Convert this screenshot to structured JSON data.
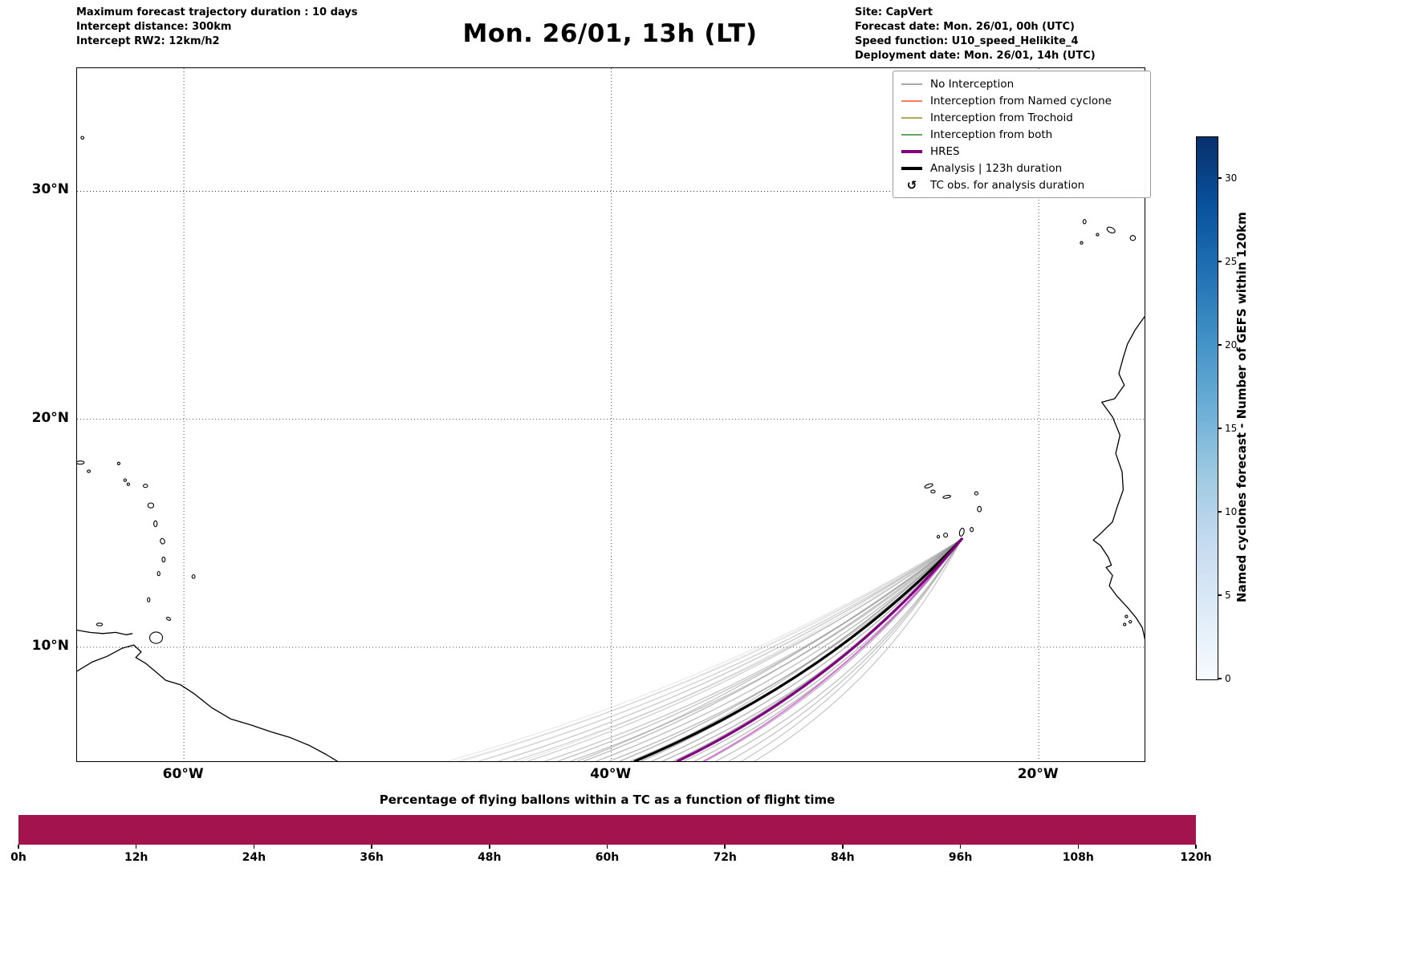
{
  "header": {
    "left_lines": [
      "Maximum forecast trajectory duration : 10 days",
      "Intercept distance: 300km",
      "Intercept RW2: 12km/h2"
    ],
    "title": "Mon. 26/01, 13h (LT)",
    "right_lines": [
      "Site: CapVert",
      "Forecast date: Mon. 26/01, 00h (UTC)",
      "Speed function: U10_speed_Helikite_4",
      "Deployment date: Mon. 26/01, 14h (UTC)"
    ]
  },
  "legend": {
    "items": [
      {
        "label": "No Interception",
        "type": "line",
        "color": "#8a8a8a",
        "width": 1.5
      },
      {
        "label": "Interception from Named cyclone",
        "type": "line",
        "color": "#ff5028",
        "width": 1.5
      },
      {
        "label": "Interception from Trochoid",
        "type": "line",
        "color": "#9b8b20",
        "width": 1.5
      },
      {
        "label": "Interception from both",
        "type": "line",
        "color": "#2f8b2f",
        "width": 1.5
      },
      {
        "label": "HRES",
        "type": "line",
        "color": "#800080",
        "width": 4
      },
      {
        "label": "Analysis | 123h duration",
        "type": "line",
        "color": "#000000",
        "width": 4
      },
      {
        "label": "TC obs. for analysis duration",
        "type": "symbol",
        "symbol": "↺",
        "color": "#000000"
      }
    ]
  },
  "colorbar": {
    "label": "Named cyclones forecast - Number of GEFS within 120km",
    "ticks": [
      0,
      5,
      10,
      15,
      20,
      25,
      30
    ],
    "vmin": 0,
    "vmax": 32.5,
    "colors": [
      "#f7fbff",
      "#deebf7",
      "#c6dbef",
      "#9ecae1",
      "#6baed6",
      "#4292c6",
      "#2171b5",
      "#08519c",
      "#08306b"
    ]
  },
  "chart_data": [
    {
      "type": "map-trajectories",
      "extent": {
        "lon_min": -65,
        "lon_max": -15.05,
        "lat_min": 5.0,
        "lat_max": 35.4
      },
      "xticks": [
        {
          "lon": -60,
          "label": "60°W"
        },
        {
          "lon": -40,
          "label": "40°W"
        },
        {
          "lon": -20,
          "label": "20°W"
        }
      ],
      "yticks": [
        {
          "lat": 30,
          "label": "30°N"
        },
        {
          "lat": 20,
          "label": "20°N"
        },
        {
          "lat": 10,
          "label": "10°N"
        }
      ],
      "origin": {
        "name": "CapVert",
        "lon": -23.6,
        "lat": 14.75
      },
      "trajectories": {
        "member_color": "#8c8c8c",
        "gefs_members": [
          {
            "e": -47.2,
            "b": 0.35,
            "o": 0.3,
            "w": 1.1
          },
          {
            "e": -46.2,
            "b": 0.1,
            "o": 0.3,
            "w": 1.1
          },
          {
            "e": -45.3,
            "b": -0.2,
            "o": 0.35,
            "w": 1.2
          },
          {
            "e": -44.6,
            "b": 0.45,
            "o": 0.4,
            "w": 1.2
          },
          {
            "e": -43.9,
            "b": -0.3,
            "o": 0.45,
            "w": 1.2
          },
          {
            "e": -43.1,
            "b": 0.6,
            "o": 0.5,
            "w": 1.3
          },
          {
            "e": -42.5,
            "b": 0.0,
            "o": 0.55,
            "w": 1.3
          },
          {
            "e": -41.9,
            "b": 0.7,
            "o": 0.55,
            "w": 1.3
          },
          {
            "e": -41.3,
            "b": -0.4,
            "o": 0.6,
            "w": 1.3
          },
          {
            "e": -40.7,
            "b": 0.25,
            "o": 0.6,
            "w": 1.3
          },
          {
            "e": -40.1,
            "b": 0.85,
            "o": 0.6,
            "w": 1.3
          },
          {
            "e": -39.6,
            "b": -0.15,
            "o": 0.65,
            "w": 1.3
          },
          {
            "e": -39.1,
            "b": 0.35,
            "o": 0.65,
            "w": 1.3
          },
          {
            "e": -38.6,
            "b": -0.45,
            "o": 0.65,
            "w": 1.3
          },
          {
            "e": -38.1,
            "b": 0.15,
            "o": 0.65,
            "w": 1.3
          },
          {
            "e": -37.6,
            "b": 0.55,
            "o": 0.65,
            "w": 1.3
          },
          {
            "e": -37.1,
            "b": -0.25,
            "o": 0.65,
            "w": 1.3
          },
          {
            "e": -36.6,
            "b": 0.2,
            "o": 0.6,
            "w": 1.3
          },
          {
            "e": -36.1,
            "b": 0.0,
            "o": 0.6,
            "w": 1.3
          },
          {
            "e": -35.6,
            "b": -0.3,
            "o": 0.6,
            "w": 1.3
          },
          {
            "e": -35.1,
            "b": 0.3,
            "o": 0.55,
            "w": 1.3
          },
          {
            "e": -34.5,
            "b": 0.05,
            "o": 0.55,
            "w": 1.2
          },
          {
            "e": -33.9,
            "b": -0.2,
            "o": 0.5,
            "w": 1.2
          },
          {
            "e": -33.3,
            "b": 0.1,
            "o": 0.5,
            "w": 1.2
          },
          {
            "e": -41.6,
            "b": -1.3,
            "o": 0.55,
            "w": 1.2
          },
          {
            "e": -38.9,
            "b": -1.0,
            "o": 0.55,
            "w": 1.2
          },
          {
            "e": -48.4,
            "b": 0.2,
            "o": 0.22,
            "w": 1.1,
            "el": 4.8
          },
          {
            "e": -47.7,
            "b": -0.1,
            "o": 0.22,
            "w": 1.1,
            "el": 4.8
          },
          {
            "e": -46.9,
            "b": 0.5,
            "o": 0.25,
            "w": 1.1,
            "el": 4.8
          },
          {
            "e": -45.9,
            "b": 0.0,
            "o": 0.25,
            "w": 1.1,
            "el": 4.8
          },
          {
            "e": -44.9,
            "b": -0.35,
            "o": 0.25,
            "w": 1.1,
            "el": 4.8
          }
        ],
        "analysis": {
          "e": -38.9,
          "b": 0.15,
          "o": 1,
          "w": 3.2,
          "color": "#000000",
          "label": "Analysis | 123h duration"
        },
        "hres": {
          "e": -36.9,
          "b": -0.2,
          "o": 1,
          "w": 3.2,
          "color": "#800080",
          "label": "HRES"
        },
        "hres_tail": {
          "e": -35.7,
          "b": -0.5,
          "o": 0.85,
          "w": 1.6,
          "color": "#d44fd4"
        }
      },
      "coastlines": {
        "lines": [
          [
            [
              -65,
              8.95
            ],
            [
              -64.3,
              9.35
            ],
            [
              -63.6,
              9.6
            ],
            [
              -62.9,
              9.95
            ],
            [
              -62.35,
              10.1
            ],
            [
              -62.0,
              9.8
            ],
            [
              -62.25,
              9.55
            ],
            [
              -61.8,
              9.3
            ],
            [
              -61.35,
              8.95
            ],
            [
              -60.85,
              8.55
            ],
            [
              -60.15,
              8.35
            ],
            [
              -59.5,
              7.95
            ],
            [
              -58.7,
              7.35
            ],
            [
              -57.8,
              6.85
            ],
            [
              -56.9,
              6.6
            ],
            [
              -55.95,
              6.3
            ],
            [
              -55.05,
              6.05
            ],
            [
              -54.15,
              5.7
            ],
            [
              -53.35,
              5.3
            ],
            [
              -52.65,
              4.9
            ],
            [
              -52.1,
              4.5
            ]
          ],
          [
            [
              -65,
              10.75
            ],
            [
              -64.4,
              10.65
            ],
            [
              -63.8,
              10.6
            ],
            [
              -63.2,
              10.65
            ],
            [
              -62.7,
              10.55
            ],
            [
              -62.4,
              10.6
            ]
          ],
          [
            [
              -15.05,
              24.5
            ],
            [
              -15.5,
              23.9
            ],
            [
              -15.85,
              23.3
            ],
            [
              -16.05,
              22.7
            ],
            [
              -16.25,
              22.0
            ],
            [
              -16.0,
              21.5
            ],
            [
              -16.45,
              20.9
            ],
            [
              -17.05,
              20.75
            ],
            [
              -16.55,
              20.1
            ],
            [
              -16.2,
              19.3
            ],
            [
              -16.4,
              18.5
            ],
            [
              -16.1,
              17.7
            ],
            [
              -16.05,
              16.9
            ],
            [
              -16.35,
              16.1
            ],
            [
              -16.55,
              15.5
            ],
            [
              -17.15,
              14.95
            ],
            [
              -17.45,
              14.7
            ],
            [
              -17.1,
              14.45
            ],
            [
              -16.75,
              13.95
            ],
            [
              -16.6,
              13.6
            ],
            [
              -16.85,
              13.5
            ],
            [
              -16.55,
              13.15
            ],
            [
              -16.7,
              12.7
            ],
            [
              -16.35,
              12.25
            ],
            [
              -15.85,
              11.75
            ],
            [
              -15.45,
              11.3
            ],
            [
              -15.15,
              10.85
            ],
            [
              -15.02,
              10.3
            ]
          ]
        ],
        "islands": [
          [
            -64.75,
            32.35,
            0.07,
            0.03,
            25
          ],
          [
            -64.85,
            18.1,
            0.18,
            0.07,
            0
          ],
          [
            -64.45,
            17.72,
            0.07,
            0.05,
            0
          ],
          [
            -63.05,
            18.06,
            0.05,
            0.04,
            0
          ],
          [
            -62.75,
            17.33,
            0.06,
            0.05,
            0
          ],
          [
            -62.6,
            17.15,
            0.06,
            0.05,
            0
          ],
          [
            -61.8,
            17.08,
            0.1,
            0.07,
            0
          ],
          [
            -61.55,
            16.22,
            0.14,
            0.11,
            0
          ],
          [
            -61.33,
            15.42,
            0.08,
            0.13,
            0
          ],
          [
            -61.0,
            14.65,
            0.1,
            0.12,
            -20
          ],
          [
            -60.95,
            13.85,
            0.07,
            0.11,
            0
          ],
          [
            -61.18,
            13.23,
            0.06,
            0.09,
            0
          ],
          [
            -61.65,
            12.08,
            0.06,
            0.09,
            0
          ],
          [
            -59.55,
            13.1,
            0.07,
            0.08,
            0
          ],
          [
            -60.72,
            11.25,
            0.1,
            0.05,
            30
          ],
          [
            -61.3,
            10.42,
            0.3,
            0.25,
            0
          ],
          [
            -63.95,
            11.0,
            0.14,
            0.06,
            0
          ],
          [
            -25.15,
            17.08,
            0.2,
            0.07,
            -20
          ],
          [
            -24.95,
            16.83,
            0.1,
            0.06,
            0
          ],
          [
            -24.3,
            16.6,
            0.18,
            0.06,
            -10
          ],
          [
            -22.92,
            16.75,
            0.08,
            0.07,
            0
          ],
          [
            -22.78,
            16.06,
            0.09,
            0.12,
            0
          ],
          [
            -23.14,
            15.16,
            0.07,
            0.09,
            0
          ],
          [
            -23.6,
            15.05,
            0.1,
            0.18,
            15
          ],
          [
            -24.36,
            14.92,
            0.09,
            0.09,
            0
          ],
          [
            -24.7,
            14.85,
            0.05,
            0.04,
            0
          ],
          [
            -18.0,
            27.74,
            0.06,
            0.05,
            0
          ],
          [
            -17.86,
            28.67,
            0.07,
            0.09,
            0
          ],
          [
            -17.25,
            28.1,
            0.06,
            0.05,
            0
          ],
          [
            -16.62,
            28.3,
            0.2,
            0.11,
            25
          ],
          [
            -15.6,
            27.95,
            0.12,
            0.11,
            0
          ],
          [
            -15.9,
            11.35,
            0.06,
            0.05,
            0
          ],
          [
            -15.72,
            11.12,
            0.05,
            0.04,
            0
          ],
          [
            -15.98,
            11.0,
            0.05,
            0.04,
            0
          ]
        ]
      }
    },
    {
      "type": "bar",
      "title": "Percentage of flying ballons within a TC as a function of flight time",
      "categories": [
        "0h",
        "12h",
        "24h",
        "36h",
        "48h",
        "60h",
        "72h",
        "84h",
        "96h",
        "108h",
        "120h"
      ],
      "values": [
        100,
        100,
        100,
        100,
        100,
        100,
        100,
        100,
        100,
        100,
        100
      ],
      "ylim": [
        0,
        100
      ],
      "bar_color": "#a3134e"
    }
  ]
}
